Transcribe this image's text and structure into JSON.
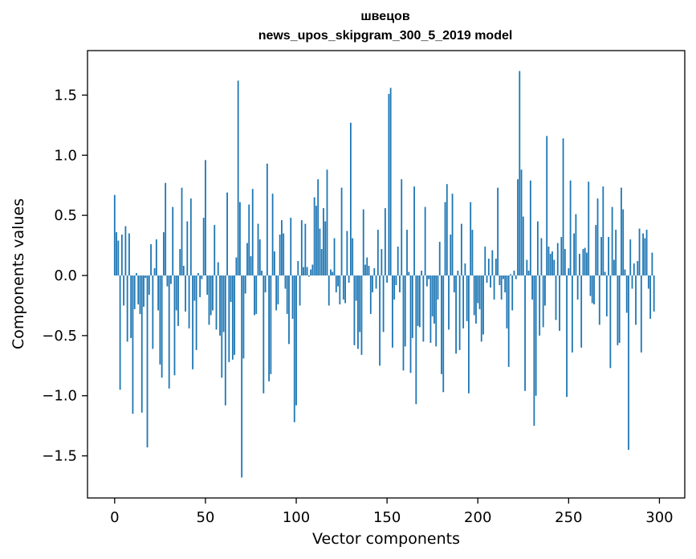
{
  "chart_data": {
    "type": "bar",
    "title": "швецов",
    "subtitle": "news_upos_skipgram_300_5_2019 model",
    "xlabel": "Vector components",
    "ylabel": "Components values",
    "xlim": [
      -14.95,
      313.95
    ],
    "ylim": [
      -1.85,
      1.87
    ],
    "xticks": [
      0,
      50,
      100,
      150,
      200,
      250,
      300
    ],
    "yticks": [
      -1.5,
      -1.0,
      -0.5,
      0.0,
      0.5,
      1.0,
      1.5
    ],
    "ytick_labels": [
      "−1.5",
      "−1.0",
      "−0.5",
      "0.0",
      "0.5",
      "1.0",
      "1.5"
    ],
    "grid": false,
    "bar_color": "#1f77b4",
    "x": "components 0..299",
    "values": [
      0.67,
      0.36,
      0.29,
      -0.95,
      0.34,
      -0.25,
      0.41,
      -0.55,
      0.35,
      -0.52,
      -1.15,
      -0.28,
      0.02,
      -0.24,
      -0.32,
      -1.14,
      -0.26,
      -0.02,
      -1.43,
      -0.16,
      0.26,
      -0.61,
      0.06,
      0.3,
      -0.29,
      -0.74,
      -0.85,
      0.36,
      0.77,
      -0.09,
      -0.94,
      -0.07,
      0.57,
      -0.83,
      -0.29,
      -0.42,
      0.22,
      0.73,
      0.08,
      -0.3,
      0.45,
      -0.44,
      0.64,
      -0.78,
      -0.21,
      -0.62,
      0.02,
      -0.18,
      -0.03,
      0.48,
      0.96,
      -0.16,
      -0.41,
      -0.33,
      -0.29,
      0.42,
      -0.45,
      0.11,
      -0.5,
      -0.85,
      -0.47,
      -1.08,
      0.69,
      -0.72,
      -0.22,
      -0.7,
      -0.66,
      0.15,
      1.62,
      0.61,
      -1.68,
      -0.69,
      -0.15,
      0.27,
      0.59,
      0.16,
      0.72,
      -0.33,
      -0.32,
      0.43,
      0.3,
      0.04,
      -0.98,
      -0.14,
      0.93,
      -0.88,
      -0.82,
      0.68,
      0.2,
      -0.29,
      -0.24,
      0.34,
      0.46,
      0.35,
      -0.11,
      -0.32,
      -0.57,
      0.48,
      -0.36,
      -1.22,
      -1.08,
      0.12,
      -0.25,
      0.46,
      0.07,
      0.43,
      0.07,
      -0.01,
      0.05,
      0.09,
      0.65,
      0.58,
      0.8,
      0.39,
      0.22,
      0.56,
      0.45,
      0.88,
      -0.25,
      0.05,
      0.03,
      0.31,
      -0.14,
      -0.09,
      -0.24,
      0.73,
      -0.2,
      -0.23,
      0.37,
      -0.06,
      1.27,
      0.31,
      -0.58,
      -0.21,
      -0.61,
      -0.47,
      -0.66,
      0.55,
      0.09,
      0.15,
      0.08,
      -0.32,
      -0.14,
      0.06,
      -0.11,
      0.38,
      -0.75,
      0.22,
      -0.47,
      0.56,
      -0.06,
      1.51,
      1.56,
      -0.6,
      -0.2,
      -0.08,
      0.24,
      -0.14,
      0.8,
      -0.79,
      -0.59,
      0.38,
      0.03,
      -0.81,
      -0.52,
      0.74,
      -1.07,
      -0.42,
      -0.43,
      0.04,
      -0.55,
      0.57,
      -0.09,
      -0.03,
      -0.56,
      -0.34,
      -0.4,
      -0.59,
      -0.2,
      0.28,
      -0.82,
      -0.97,
      0.61,
      0.76,
      -0.45,
      0.34,
      0.68,
      -0.14,
      -0.65,
      0.04,
      -0.62,
      0.43,
      -0.44,
      0.1,
      -0.38,
      -0.98,
      0.61,
      0.38,
      -0.33,
      -0.4,
      -0.23,
      -0.28,
      -0.55,
      -0.49,
      0.24,
      -0.06,
      0.14,
      -0.1,
      0.21,
      -0.2,
      0.14,
      0.73,
      -0.08,
      -0.2,
      -0.03,
      -0.14,
      -0.44,
      -0.76,
      0.01,
      -0.29,
      0.04,
      -0.03,
      0.8,
      1.7,
      0.88,
      0.49,
      -0.96,
      0.13,
      0.04,
      0.79,
      -0.2,
      -1.25,
      -1.0,
      0.45,
      -0.5,
      0.31,
      -0.43,
      -0.25,
      1.16,
      0.24,
      0.18,
      0.2,
      0.13,
      -0.37,
      0.27,
      -0.46,
      0.32,
      1.14,
      0.22,
      -1.01,
      0.06,
      0.79,
      -0.64,
      0.35,
      0.51,
      -0.2,
      0.18,
      -0.6,
      0.22,
      0.23,
      0.19,
      0.78,
      -0.17,
      -0.23,
      -0.24,
      0.42,
      0.64,
      -0.41,
      0.32,
      0.74,
      0.03,
      -0.34,
      0.32,
      -0.77,
      0.57,
      0.13,
      0.38,
      -0.58,
      -0.56,
      0.73,
      0.55,
      0.05,
      -0.31,
      -1.45,
      0.3,
      -0.11,
      0.1,
      -0.41,
      0.12,
      0.39,
      -0.64,
      0.35,
      0.31,
      0.38,
      -0.11,
      -0.36,
      0.19,
      -0.3
    ]
  }
}
